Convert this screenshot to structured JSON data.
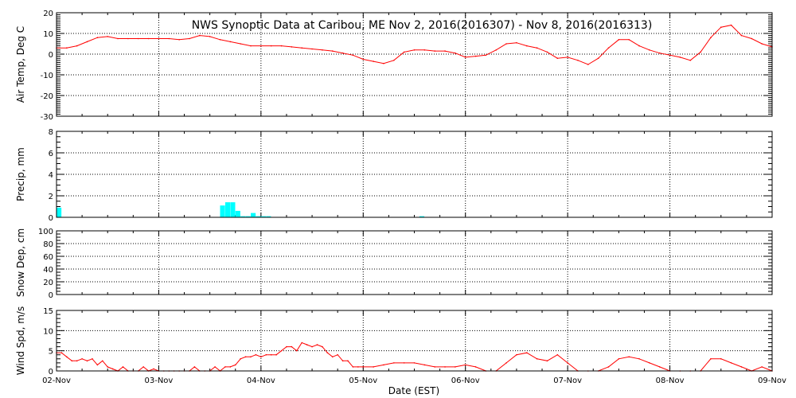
{
  "title": "NWS Synoptic Data at Caribou, ME    Nov  2, 2016(2016307) - Nov  8, 2016(2016313)",
  "xlabel": "Date (EST)",
  "x_ticks": [
    "02-Nov",
    "03-Nov",
    "04-Nov",
    "05-Nov",
    "06-Nov",
    "07-Nov",
    "08-Nov",
    "09-Nov"
  ],
  "colors": {
    "temperature": "#ff0000",
    "precip": "#00ffff",
    "wind": "#ff0000",
    "grid": "#000000",
    "frame": "#000000"
  },
  "chart_data": [
    {
      "type": "line",
      "ylabel": "Air Temp, Deg C",
      "ylim": [
        -30,
        20
      ],
      "yticks": [
        -30,
        -20,
        -10,
        0,
        10,
        20
      ],
      "grid": true,
      "x_unit": "day offset from 02-Nov 00:00 EST",
      "series": [
        {
          "x": [
            0,
            0.1,
            0.2,
            0.3,
            0.4,
            0.5,
            0.6,
            0.7,
            0.8,
            0.9,
            1.0,
            1.1,
            1.2,
            1.3,
            1.4,
            1.5,
            1.6,
            1.7,
            1.8,
            1.9,
            2.0,
            2.1,
            2.2,
            2.3,
            2.4,
            2.5,
            2.6,
            2.7,
            2.8,
            2.9,
            3.0,
            3.1,
            3.2,
            3.3,
            3.4,
            3.5,
            3.6,
            3.7,
            3.8,
            3.9,
            4.0,
            4.1,
            4.2,
            4.3,
            4.4,
            4.5,
            4.6,
            4.7,
            4.8,
            4.9,
            5.0,
            5.1,
            5.2,
            5.3,
            5.4,
            5.5,
            5.6,
            5.7,
            5.8,
            5.9,
            6.0,
            6.1,
            6.2,
            6.3,
            6.4,
            6.5,
            6.6,
            6.7,
            6.8,
            6.9,
            7.0
          ],
          "values": [
            3,
            3,
            4,
            6,
            8,
            8.5,
            7.5,
            7.5,
            7.5,
            7.5,
            7.5,
            7.5,
            7,
            7.5,
            9,
            8.5,
            7,
            6,
            5,
            4,
            4,
            4,
            4,
            3.5,
            3,
            2.5,
            2,
            1.5,
            0.5,
            -0.5,
            -2.5,
            -3.5,
            -4.5,
            -3,
            1,
            2,
            2,
            1.5,
            1.5,
            0.5,
            -1.5,
            -1,
            -0.5,
            2,
            5,
            5.5,
            4,
            3,
            1,
            -2,
            -1.5,
            -3,
            -5,
            -2,
            3,
            7,
            7,
            4,
            2,
            0.5,
            -0.5,
            -1.5,
            -3,
            1,
            8,
            13,
            14,
            9,
            7.5,
            5,
            3.5
          ]
        }
      ]
    },
    {
      "type": "bar",
      "ylabel": "Precip, mm",
      "ylim": [
        0,
        8
      ],
      "yticks": [
        0,
        2,
        4,
        6,
        8
      ],
      "grid": true,
      "x_unit": "day offset from 02-Nov 00:00 EST",
      "series": [
        {
          "x": [
            0.0,
            1.6,
            1.65,
            1.7,
            1.75,
            1.8,
            1.85,
            1.9,
            1.95,
            2.0,
            2.05,
            3.55
          ],
          "values": [
            0.9,
            1.1,
            1.4,
            1.4,
            0.6,
            0.1,
            0.1,
            0.4,
            0.1,
            0.1,
            0.1,
            0.1
          ]
        }
      ]
    },
    {
      "type": "line",
      "ylabel": "Snow Dep, cm",
      "ylim": [
        0,
        100
      ],
      "yticks": [
        0,
        20,
        40,
        60,
        80,
        100
      ],
      "grid": true,
      "series": []
    },
    {
      "type": "line",
      "ylabel": "Wind Spd, m/s",
      "ylim": [
        0,
        15
      ],
      "yticks": [
        0,
        5,
        10,
        15
      ],
      "grid": true,
      "x_unit": "day offset from 02-Nov 00:00 EST",
      "series": [
        {
          "x": [
            0,
            0.05,
            0.1,
            0.15,
            0.2,
            0.25,
            0.3,
            0.35,
            0.4,
            0.45,
            0.5,
            0.55,
            0.6,
            0.65,
            0.7,
            0.75,
            0.8,
            0.85,
            0.9,
            0.95,
            1.0,
            1.05,
            1.1,
            1.15,
            1.2,
            1.25,
            1.3,
            1.35,
            1.4,
            1.45,
            1.5,
            1.55,
            1.6,
            1.65,
            1.7,
            1.75,
            1.8,
            1.85,
            1.9,
            1.95,
            2.0,
            2.05,
            2.1,
            2.15,
            2.2,
            2.25,
            2.3,
            2.35,
            2.4,
            2.45,
            2.5,
            2.55,
            2.6,
            2.65,
            2.7,
            2.75,
            2.8,
            2.85,
            2.9,
            2.95,
            3.0,
            3.1,
            3.2,
            3.3,
            3.4,
            3.5,
            3.6,
            3.7,
            3.8,
            3.9,
            4.0,
            4.1,
            4.2,
            4.3,
            4.4,
            4.5,
            4.6,
            4.7,
            4.8,
            4.9,
            5.0,
            5.1,
            5.2,
            5.3,
            5.4,
            5.5,
            5.6,
            5.7,
            5.8,
            5.9,
            6.0,
            6.1,
            6.2,
            6.3,
            6.4,
            6.5,
            6.6,
            6.7,
            6.8,
            6.9,
            7.0
          ],
          "values": [
            4.5,
            4.5,
            3.5,
            2.5,
            2.5,
            3,
            2.5,
            3,
            1.5,
            2.5,
            1,
            0.5,
            0,
            1,
            0,
            0,
            0,
            1,
            0,
            0.5,
            0,
            0,
            0,
            0,
            0,
            0,
            0,
            1,
            0,
            0,
            0,
            1,
            0,
            1,
            1,
            1.5,
            3,
            3.5,
            3.5,
            4,
            3.5,
            4,
            4,
            4,
            5,
            6,
            6,
            5,
            7,
            6.5,
            6,
            6.5,
            6,
            4.5,
            3.5,
            4,
            2.5,
            2.5,
            1,
            1,
            1,
            1,
            1.5,
            2,
            2,
            2,
            1.5,
            1,
            1,
            1,
            1.5,
            1,
            0,
            0,
            2,
            4,
            4.5,
            3,
            2.5,
            4,
            2,
            0,
            0,
            0,
            1,
            3,
            3.5,
            3,
            2,
            1,
            0,
            0,
            0,
            0,
            3,
            3,
            2,
            1,
            0,
            1,
            0
          ]
        }
      ]
    }
  ]
}
